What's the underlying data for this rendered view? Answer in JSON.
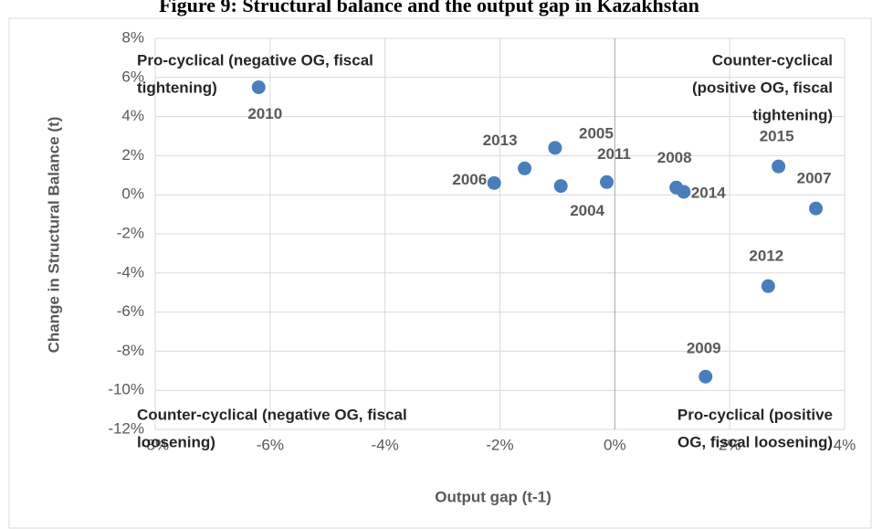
{
  "chart_data": {
    "type": "scatter",
    "title": "Figure 9: Structural balance and the output gap in Kazakhstan",
    "xlabel": "Output gap (t-1)",
    "ylabel": "Change in Structural Balance (t)",
    "color": "#4a7ebb",
    "grid": true,
    "labels": [
      "2010",
      "2006",
      "2013",
      "2004",
      "2005",
      "2011",
      "2008",
      "2014",
      "2015",
      "2007",
      "2012",
      "2009"
    ],
    "x": [
      -6.2,
      -2.1,
      -1.57,
      -0.94,
      -1.04,
      -0.14,
      1.07,
      1.2,
      2.85,
      3.5,
      2.67,
      1.58
    ],
    "values": [
      5.5,
      0.6,
      1.35,
      0.45,
      2.4,
      0.65,
      0.37,
      0.15,
      1.45,
      -0.7,
      -4.67,
      -9.3
    ],
    "xlim": [
      -8,
      4
    ],
    "ylim": [
      -12,
      8
    ],
    "xticks": [
      {
        "value": -8,
        "label": "-8%"
      },
      {
        "value": -6,
        "label": "-6%"
      },
      {
        "value": -4,
        "label": "-4%"
      },
      {
        "value": -2,
        "label": "-2%"
      },
      {
        "value": 0,
        "label": "0%"
      },
      {
        "value": 2,
        "label": "2%"
      },
      {
        "value": 4,
        "label": "4%"
      }
    ],
    "yticks": [
      {
        "value": -12,
        "label": "-12%"
      },
      {
        "value": -10,
        "label": "-10%"
      },
      {
        "value": -8,
        "label": "-8%"
      },
      {
        "value": -6,
        "label": "-6%"
      },
      {
        "value": -4,
        "label": "-4%"
      },
      {
        "value": -2,
        "label": "-2%"
      },
      {
        "value": 0,
        "label": "0%"
      },
      {
        "value": 2,
        "label": "2%"
      },
      {
        "value": 4,
        "label": "4%"
      },
      {
        "value": 6,
        "label": "6%"
      },
      {
        "value": 8,
        "label": "8%"
      }
    ],
    "annotations": [
      [
        "Pro-cyclical (negative OG, fiscal",
        "tightening)"
      ],
      [
        "Counter-cyclical",
        "(positive OG, fiscal",
        "tightening)"
      ],
      [
        "Counter-cyclical (negative OG, fiscal",
        "loosening)"
      ],
      [
        "Pro-cyclical (positive",
        "OG, fiscal loosening)"
      ]
    ]
  }
}
